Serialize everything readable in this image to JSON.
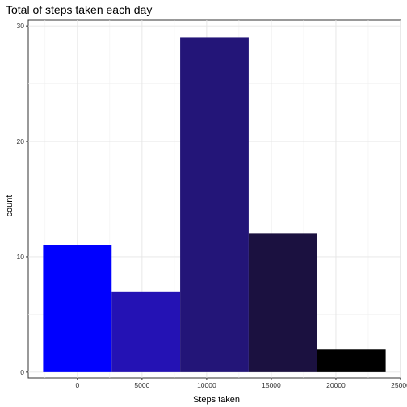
{
  "chart_data": {
    "type": "bar",
    "title": "Total of steps taken each day",
    "xlabel": "Steps taken",
    "ylabel": "count",
    "histogram": true,
    "bins": [
      {
        "x_start": -2650,
        "x_end": 2650,
        "count": 11,
        "color": "#0000ff"
      },
      {
        "x_start": 2650,
        "x_end": 7950,
        "count": 7,
        "color": "#2412b4"
      },
      {
        "x_start": 7950,
        "x_end": 13250,
        "count": 29,
        "color": "#231578"
      },
      {
        "x_start": 13250,
        "x_end": 18550,
        "count": 12,
        "color": "#1b1140"
      },
      {
        "x_start": 18550,
        "x_end": 23850,
        "count": 2,
        "color": "#000000"
      }
    ],
    "xlim": [
      -3800,
      25000
    ],
    "ylim": [
      -0.5,
      30.5
    ],
    "x_ticks": [
      0,
      5000,
      10000,
      15000,
      20000,
      25000
    ],
    "x_tick_labels": [
      "0",
      "5000",
      "10000",
      "15000",
      "20000",
      "25000"
    ],
    "y_ticks": [
      0,
      10,
      20,
      30
    ],
    "y_tick_labels": [
      "0",
      "10",
      "20",
      "30"
    ],
    "grid": true,
    "legend": "none"
  }
}
